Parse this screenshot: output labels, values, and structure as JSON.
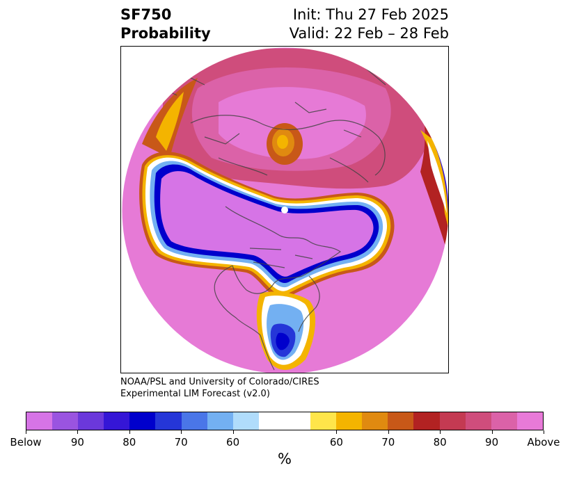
{
  "title": {
    "variable": "SF750",
    "subtitle": "Probability",
    "init": "Init: Thu 27 Feb 2025",
    "valid": "Valid: 22 Feb – 28 Feb"
  },
  "credit": {
    "line1": "NOAA/PSL and University of Colorado/CIRES",
    "line2": "Experimental LIM Forecast (v2.0)"
  },
  "map": {
    "projection": "north-polar-stereographic",
    "features": [
      "coastlines",
      "country-borders",
      "state-borders"
    ],
    "summary": "Broad below-normal (purple/blue) band from North Pacific across North America; above-normal (pink/red) over most of the hemisphere and Eurasia"
  },
  "colorbar": {
    "unit": "%",
    "colors": [
      "#d674e6",
      "#9a54e0",
      "#6b38db",
      "#3516d6",
      "#0000cc",
      "#2536d8",
      "#4a76e8",
      "#73b0f2",
      "#b0dcfb",
      "#ffffff",
      "#ffffff",
      "#fee54a",
      "#f4b400",
      "#e08a10",
      "#c85818",
      "#b22222",
      "#c43a52",
      "#cf4d7c",
      "#db62a8",
      "#e87ad8"
    ],
    "tick_labels": [
      "Below",
      "90",
      "80",
      "70",
      "60",
      "60",
      "70",
      "80",
      "90",
      "Above"
    ]
  }
}
